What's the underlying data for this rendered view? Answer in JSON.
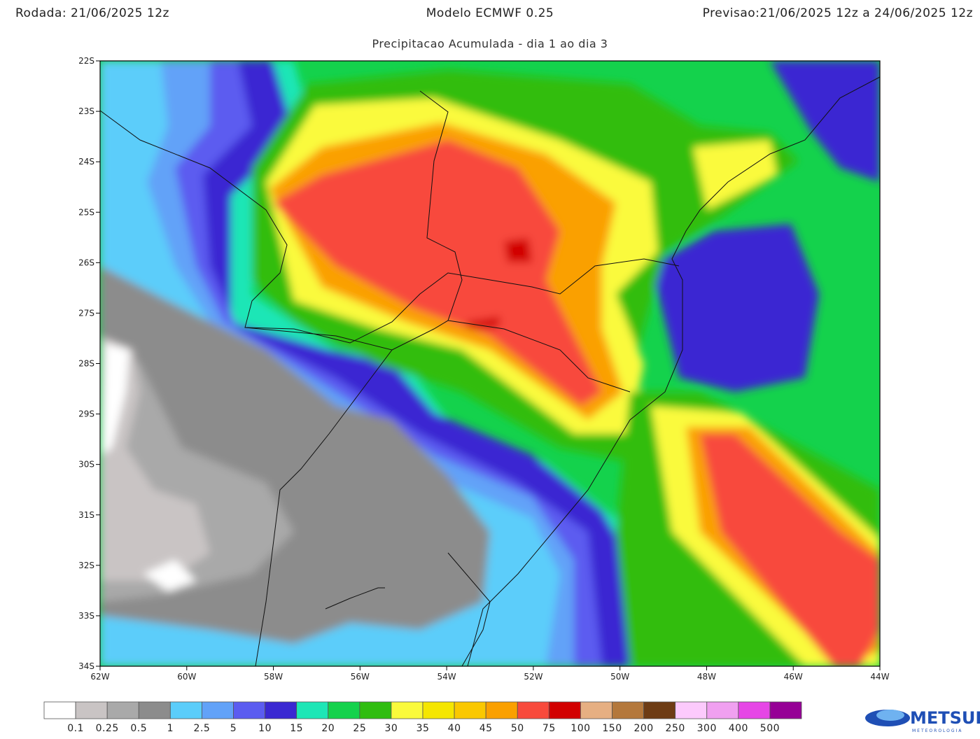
{
  "header": {
    "run": "Rodada: 21/06/2025 12z",
    "model": "Modelo ECMWF 0.25",
    "forecast": "Previsao:21/06/2025 12z a 24/06/2025 12z"
  },
  "subtitle": "Precipitacao Acumulada - dia 1 ao dia 3",
  "map": {
    "lat_labels": [
      "22S",
      "23S",
      "24S",
      "25S",
      "26S",
      "27S",
      "28S",
      "29S",
      "30S",
      "31S",
      "32S",
      "33S",
      "34S"
    ],
    "lon_labels": [
      "62W",
      "60W",
      "58W",
      "56W",
      "54W",
      "52W",
      "50W",
      "48W",
      "46W",
      "44W"
    ]
  },
  "colorbar": {
    "colors": [
      "#ffffff",
      "#c9c4c4",
      "#a9a9a9",
      "#8c8c8c",
      "#5bcdfa",
      "#62a2f8",
      "#5b5cf0",
      "#3a28d2",
      "#1de6b6",
      "#14d24c",
      "#30bd10",
      "#fafa3c",
      "#f5e600",
      "#fac800",
      "#faa000",
      "#f84a3c",
      "#d20000",
      "#e6af82",
      "#b4783c",
      "#6e3c14",
      "#fccafc",
      "#f0a0f0",
      "#e646e6",
      "#960096"
    ],
    "labels": [
      "0.1",
      "0.25",
      "0.5",
      "1",
      "2.5",
      "5",
      "10",
      "15",
      "20",
      "25",
      "30",
      "35",
      "40",
      "45",
      "50",
      "75",
      "100",
      "150",
      "200",
      "250",
      "300",
      "400",
      "500"
    ]
  },
  "logo": {
    "name": "METSUL",
    "tagline": "METEOROLOGIA"
  }
}
